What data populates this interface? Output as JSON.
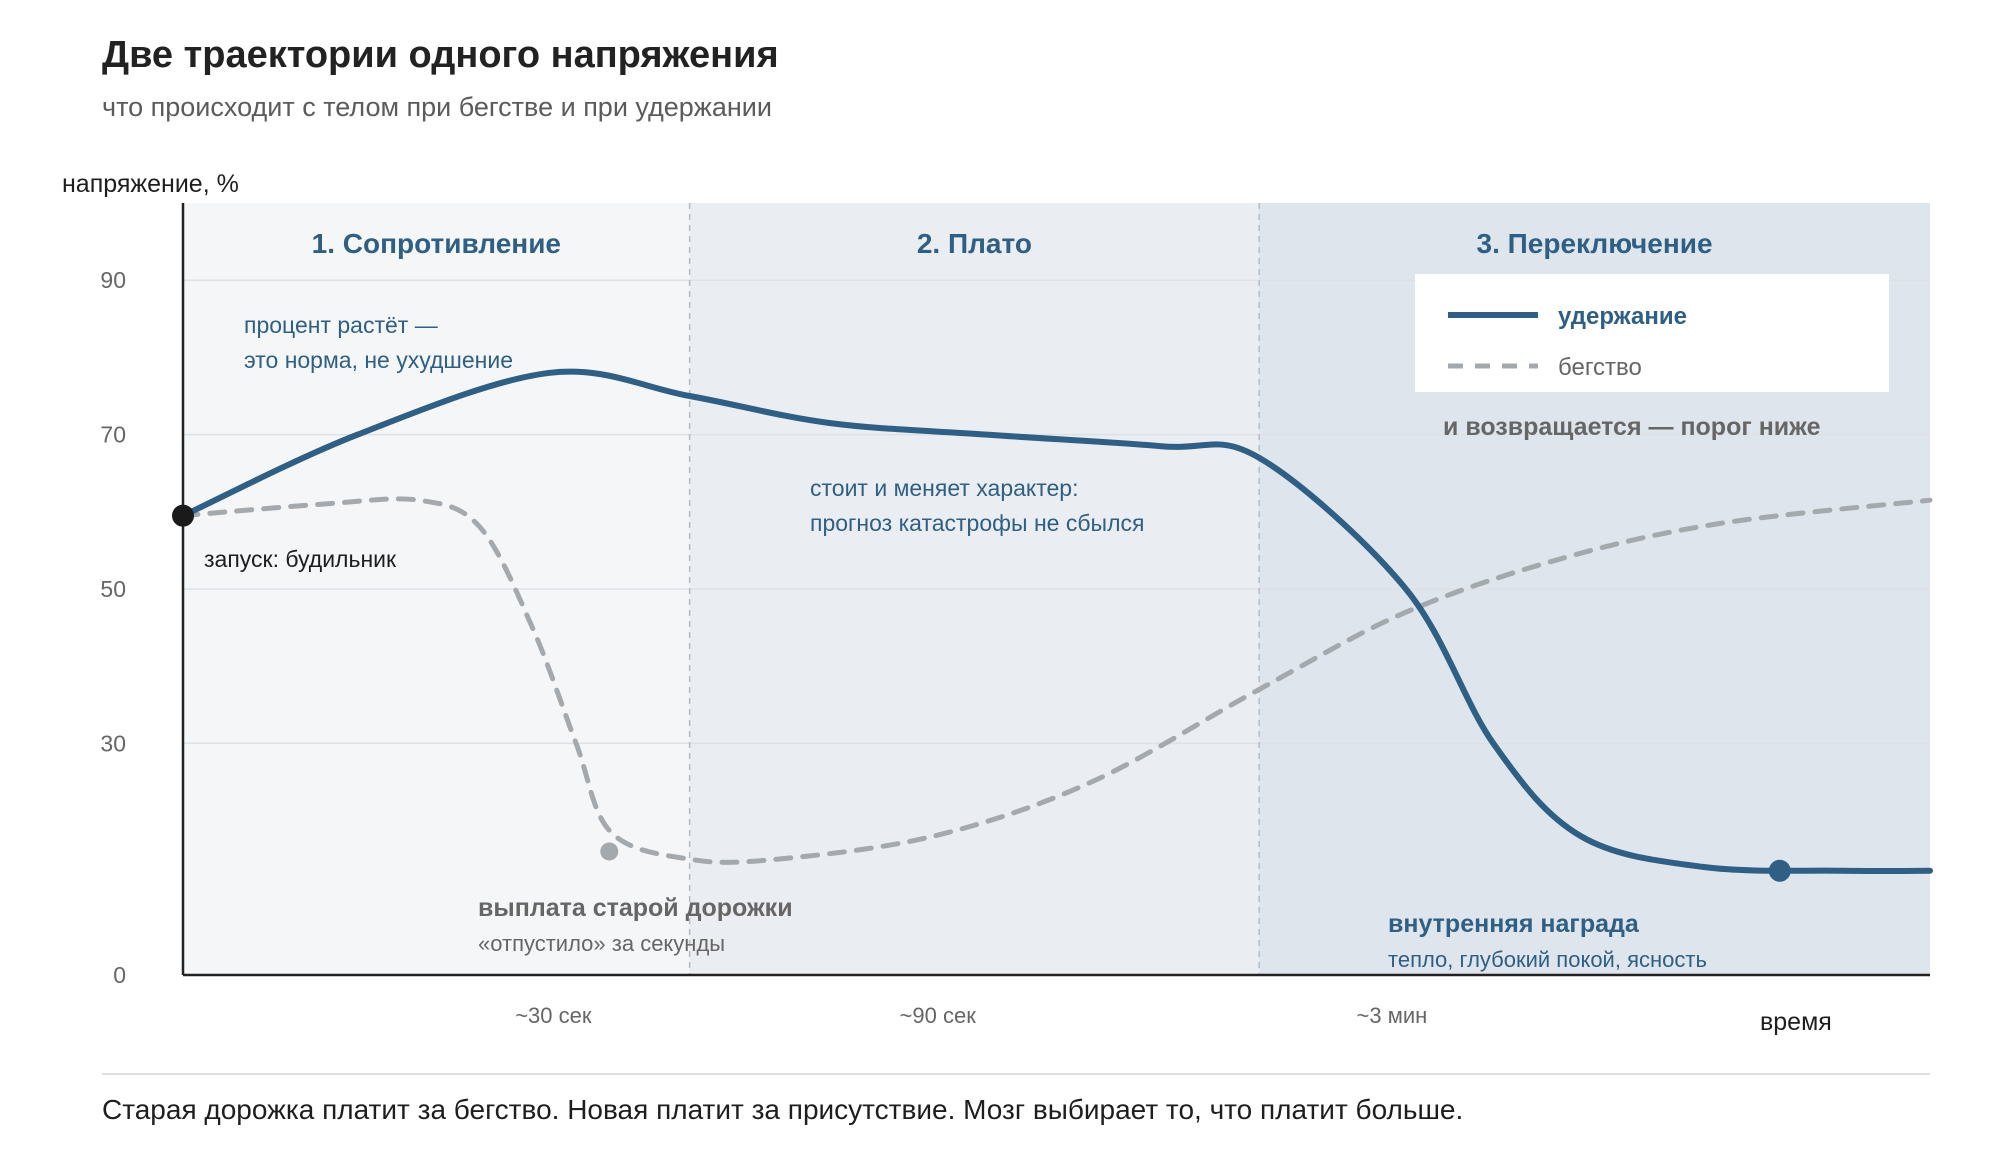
{
  "header": {
    "title": "Две траектории одного напряжения",
    "subtitle": "что происходит с телом при бегстве и при удержании"
  },
  "caption": "Старая дорожка платит за бегство. Новая платит за присутствие. Мозг выбирает то, что платит больше.",
  "colors": {
    "hold": "#2f5f84",
    "flight": "#a4a9ad",
    "phase1_bg": "#f4f6f8",
    "phase2_bg": "#eaedf1",
    "phase3_bg": "#dfe5ec"
  },
  "chart_data": {
    "type": "line",
    "xlabel": "время",
    "ylabel": "напряжение, %",
    "y_ticks": [
      0,
      30,
      50,
      70,
      90
    ],
    "ylim": [
      0,
      100
    ],
    "x_ticks": [
      {
        "label": "~30 сек",
        "at": 0.212
      },
      {
        "label": "~90 сек",
        "at": 0.432
      },
      {
        "label": "~3 мин",
        "at": 0.692
      }
    ],
    "phases": [
      {
        "label": "1. Сопротивление",
        "from": 0,
        "to": 0.29
      },
      {
        "label": "2. Плато",
        "from": 0.29,
        "to": 0.616
      },
      {
        "label": "3. Переключение",
        "from": 0.616,
        "to": 1
      }
    ],
    "legend": {
      "position": "top-right",
      "items": [
        {
          "name": "удержание",
          "series": "hold"
        },
        {
          "name": "бегство",
          "series": "flight"
        }
      ]
    },
    "series": [
      {
        "name": "удержание",
        "key": "hold",
        "style": "solid",
        "points": [
          [
            0,
            59.5
          ],
          [
            0.1,
            70
          ],
          [
            0.21,
            78
          ],
          [
            0.29,
            75
          ],
          [
            0.37,
            71.5
          ],
          [
            0.46,
            70
          ],
          [
            0.56,
            68.5
          ],
          [
            0.616,
            67
          ],
          [
            0.7,
            50
          ],
          [
            0.75,
            30
          ],
          [
            0.8,
            18
          ],
          [
            0.87,
            14
          ],
          [
            0.95,
            13.5
          ],
          [
            1,
            13.5
          ]
        ]
      },
      {
        "name": "бегство",
        "key": "flight",
        "style": "dashed",
        "points": [
          [
            0,
            59.5
          ],
          [
            0.08,
            61
          ],
          [
            0.135,
            61.5
          ],
          [
            0.17,
            58
          ],
          [
            0.2,
            45
          ],
          [
            0.225,
            30
          ],
          [
            0.245,
            18.5
          ],
          [
            0.29,
            15
          ],
          [
            0.34,
            15
          ],
          [
            0.43,
            18
          ],
          [
            0.52,
            25
          ],
          [
            0.616,
            37
          ],
          [
            0.7,
            47
          ],
          [
            0.79,
            54
          ],
          [
            0.88,
            58.5
          ],
          [
            1,
            61.5
          ]
        ]
      }
    ],
    "markers": [
      {
        "series": "hold",
        "x": 0,
        "y": 59.5
      },
      {
        "series": "flight",
        "x": 0.244,
        "y": 16
      },
      {
        "series": "hold",
        "x": 0.914,
        "y": 13.5
      }
    ],
    "annotations": {
      "start": "запуск: будильник",
      "growth_1": "процент растёт —",
      "growth_2": "это норма, не ухудшение",
      "plateau_1": "стоит и меняет характер:",
      "plateau_2": "прогноз катастрофы не сбылся",
      "payout_title": "выплата старой дорожки",
      "payout_sub": "«отпустило» за секунды",
      "returns": "и возвращается — порог ниже",
      "reward_title": "внутренняя награда",
      "reward_sub": "тепло, глубокий покой, ясность"
    }
  }
}
